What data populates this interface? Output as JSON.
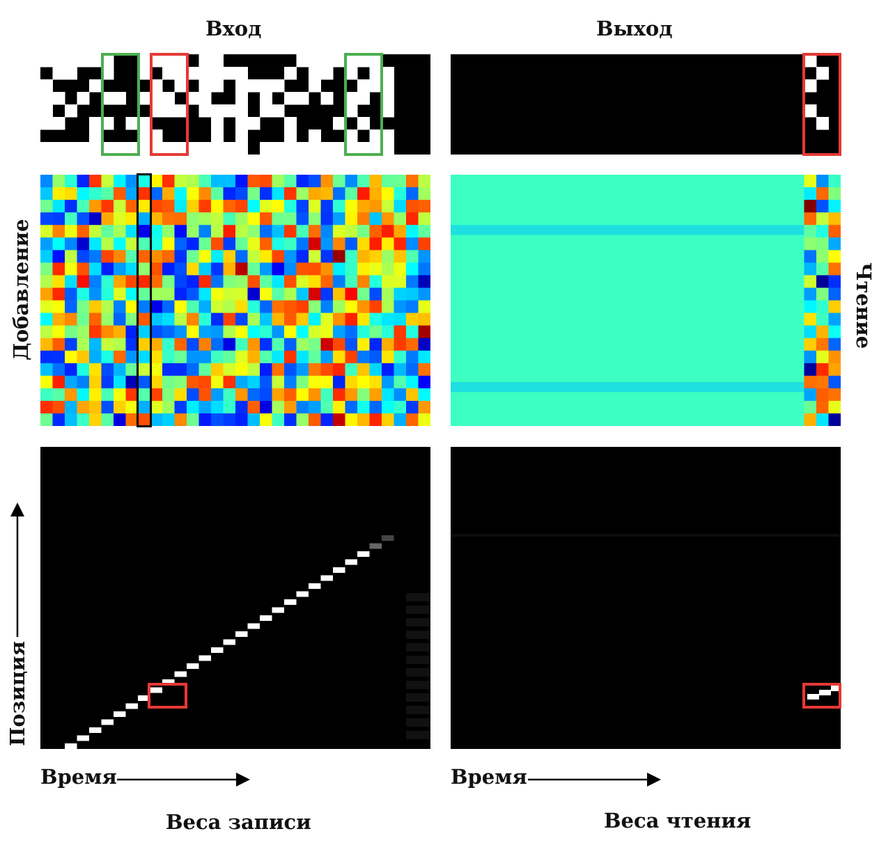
{
  "titles": {
    "input": "Вход",
    "output": "Выход",
    "add": "Добавление",
    "read": "Чтение",
    "position": "Позиция",
    "time_left": "Время",
    "time_right": "Время",
    "write_weights": "Веса записи",
    "read_weights": "Веса чтения"
  },
  "colors": {
    "highlight_green": "#4caf50",
    "highlight_red": "#e53935",
    "highlight_black": "#000000",
    "background_panel": "#000000",
    "read_field": "#3dffc4"
  },
  "panels": [
    {
      "id": "input-pattern",
      "kind": "binary-sequence"
    },
    {
      "id": "output-pattern",
      "kind": "binary-sequence"
    },
    {
      "id": "add-vectors",
      "kind": "heatmap",
      "colormap": "jet"
    },
    {
      "id": "read-vectors",
      "kind": "heatmap",
      "colormap": "jet"
    },
    {
      "id": "write-weightings",
      "kind": "heatmap",
      "colormap": "gray"
    },
    {
      "id": "read-weightings",
      "kind": "heatmap",
      "colormap": "gray"
    }
  ]
}
